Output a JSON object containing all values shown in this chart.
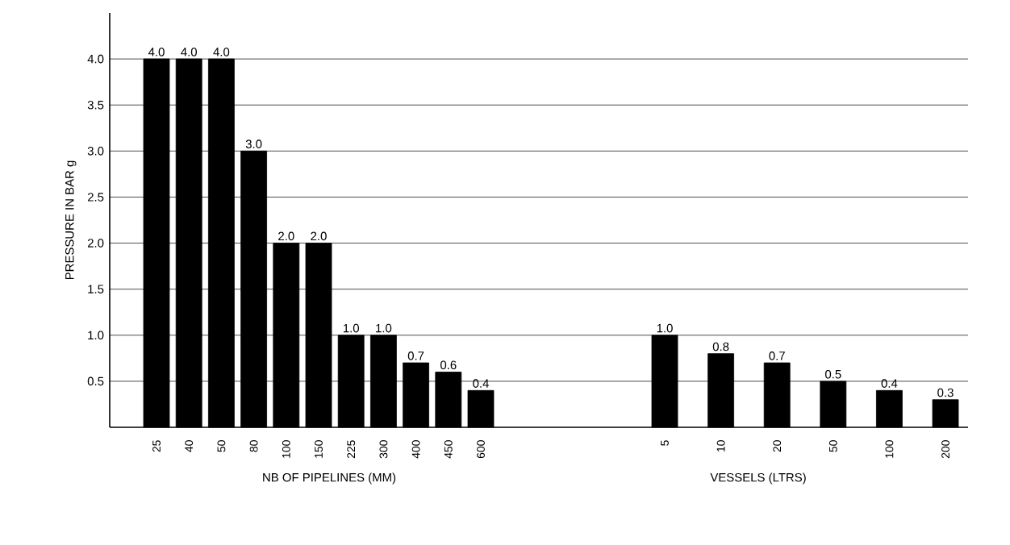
{
  "chart_data": [
    {
      "type": "bar",
      "ylabel": "PRESSURE IN BAR g",
      "xlabel": "NB OF PIPELINES (MM)",
      "categories": [
        "25",
        "40",
        "50",
        "80",
        "100",
        "150",
        "225",
        "300",
        "400",
        "450",
        "600"
      ],
      "values": [
        4.0,
        4.0,
        4.0,
        3.0,
        2.0,
        2.0,
        1.0,
        1.0,
        0.7,
        0.6,
        0.4
      ],
      "value_labels": [
        "4.0",
        "4.0",
        "4.0",
        "3.0",
        "2.0",
        "2.0",
        "1.0",
        "1.0",
        "0.7",
        "0.6",
        "0.4"
      ],
      "color": "#000000",
      "ylim": [
        0,
        4.5
      ],
      "yticks": [
        0.5,
        {
          "value": 1,
          "label": "1.0"
        },
        1.5,
        {
          "value": 2,
          "label": "2.0"
        },
        2.5,
        {
          "value": 3,
          "label": "3.0"
        },
        3.5,
        {
          "value": 4,
          "label": "4.0"
        }
      ],
      "grid": "y"
    },
    {
      "type": "bar",
      "xlabel": "VESSELS (LTRS)",
      "categories": [
        "5",
        "10",
        "20",
        "50",
        "100",
        "200"
      ],
      "values": [
        1.0,
        0.8,
        0.7,
        0.5,
        0.4,
        0.3
      ],
      "value_labels": [
        "1.0",
        "0.8",
        "0.7",
        "0.5",
        "0.4",
        "0.3"
      ],
      "color": "#000000",
      "ylim": [
        0,
        4
      ],
      "yticks": [
        0.5,
        1,
        1.5,
        2,
        2.5,
        3,
        3.5,
        4
      ],
      "grid": "y",
      "tick_labels": "x"
    }
  ]
}
